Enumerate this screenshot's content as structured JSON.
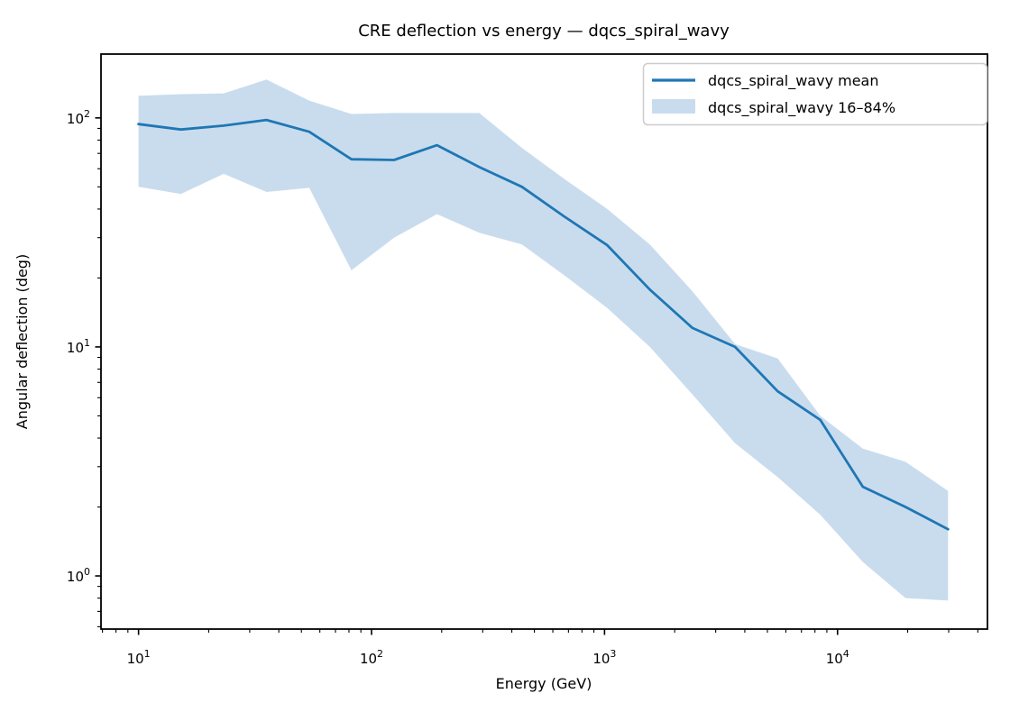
{
  "title": "CRE deflection vs energy — dqcs_spiral_wavy",
  "axes": {
    "xlabel": "Energy (GeV)",
    "ylabel": "Angular deflection (deg)"
  },
  "legend": {
    "mean_label": "dqcs_spiral_wavy mean",
    "band_label": "dqcs_spiral_wavy 16–84%"
  },
  "colors": {
    "line": "#1f77b4",
    "band": "#c9dcee",
    "frame": "#000000",
    "legend_border": "#cccccc",
    "background": "#ffffff"
  },
  "chart_data": {
    "type": "line",
    "title": "CRE deflection vs energy — dqcs_spiral_wavy",
    "xlabel": "Energy (GeV)",
    "ylabel": "Angular deflection (deg)",
    "xscale": "log",
    "yscale": "log",
    "grid": false,
    "legend_position": "upper right",
    "xlim": [
      6.9,
      44000
    ],
    "ylim": [
      0.586,
      190
    ],
    "x_major_ticks": [
      "10^1",
      "10^2",
      "10^3",
      "10^4"
    ],
    "y_major_ticks": [
      "10^0",
      "10^1",
      "10^2"
    ],
    "x": [
      10,
      15.2,
      23.2,
      35.4,
      54,
      82,
      125,
      191,
      290,
      442,
      674,
      1027,
      1565,
      2384,
      3632,
      5534,
      8431,
      12845,
      19570,
      29815
    ],
    "series": [
      {
        "name": "dqcs_spiral_wavy mean",
        "style": "line",
        "values": [
          94,
          89,
          92.5,
          98,
          87,
          66,
          65.5,
          76,
          61,
          50,
          37,
          27.8,
          17.8,
          12.1,
          10,
          6.4,
          4.8,
          2.45,
          2.0,
          1.6
        ]
      },
      {
        "name": "dqcs_spiral_wavy 84th percentile (band upper)",
        "style": "band-upper",
        "values": [
          125,
          127,
          128,
          147,
          119,
          104,
          105,
          105,
          105,
          74,
          54,
          40,
          28,
          17.5,
          10.3,
          8.9,
          5.0,
          3.6,
          3.15,
          2.35
        ]
      },
      {
        "name": "dqcs_spiral_wavy 16th percentile (band lower)",
        "style": "band-lower",
        "values": [
          50,
          46.5,
          57,
          47.5,
          49.5,
          21.6,
          30,
          38,
          31.5,
          28,
          20.5,
          14.8,
          10,
          6.2,
          3.8,
          2.7,
          1.85,
          1.15,
          0.8,
          0.78
        ]
      }
    ]
  }
}
